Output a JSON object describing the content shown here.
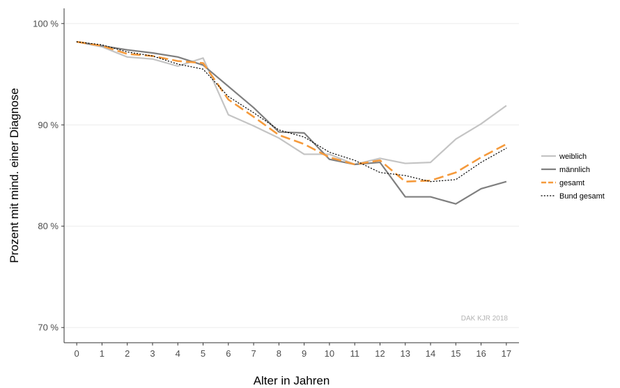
{
  "chart_data": {
    "type": "line",
    "xlabel": "Alter in Jahren",
    "ylabel": "Prozent mit mind. einer Diagnose",
    "x": [
      0,
      1,
      2,
      3,
      4,
      5,
      6,
      7,
      8,
      9,
      10,
      11,
      12,
      13,
      14,
      15,
      16,
      17
    ],
    "xlim": [
      -0.5,
      17.5
    ],
    "ylim": [
      68.5,
      101.5
    ],
    "yticks": [
      70,
      80,
      90,
      100
    ],
    "ytick_labels": [
      "70 %",
      "80 %",
      "90 %",
      "100 %"
    ],
    "xtick_labels": [
      "0",
      "1",
      "2",
      "3",
      "4",
      "5",
      "6",
      "7",
      "8",
      "9",
      "10",
      "11",
      "12",
      "13",
      "14",
      "15",
      "16",
      "17"
    ],
    "grid": "horizontal",
    "legend_position": "right",
    "annotation": "DAK KJR 2018",
    "series": [
      {
        "name": "weiblich",
        "color": "#c4c4c4",
        "style": "solid",
        "values": [
          98.2,
          97.7,
          96.7,
          96.5,
          95.8,
          96.6,
          91.0,
          89.9,
          88.7,
          87.1,
          87.1,
          86.1,
          86.7,
          86.2,
          86.3,
          88.6,
          90.1,
          91.9
        ]
      },
      {
        "name": "männlich",
        "color": "#7f7f7f",
        "style": "solid",
        "values": [
          98.2,
          97.8,
          97.4,
          97.1,
          96.7,
          95.9,
          93.8,
          91.7,
          89.3,
          89.2,
          86.6,
          86.1,
          86.3,
          82.9,
          82.9,
          82.2,
          83.7,
          84.4
        ]
      },
      {
        "name": "gesamt",
        "color": "#f59a3c",
        "style": "dashed",
        "values": [
          98.2,
          97.8,
          97.0,
          96.8,
          96.3,
          96.1,
          92.5,
          90.8,
          89.0,
          88.1,
          86.8,
          86.1,
          86.5,
          84.4,
          84.5,
          85.3,
          86.8,
          88.1
        ]
      },
      {
        "name": "Bund gesamt",
        "color": "#000000",
        "style": "dotted",
        "values": [
          98.2,
          97.9,
          97.2,
          96.8,
          96.0,
          95.5,
          92.8,
          91.2,
          89.5,
          88.8,
          87.3,
          86.5,
          85.3,
          85.0,
          84.4,
          84.6,
          86.3,
          87.7
        ]
      }
    ]
  }
}
